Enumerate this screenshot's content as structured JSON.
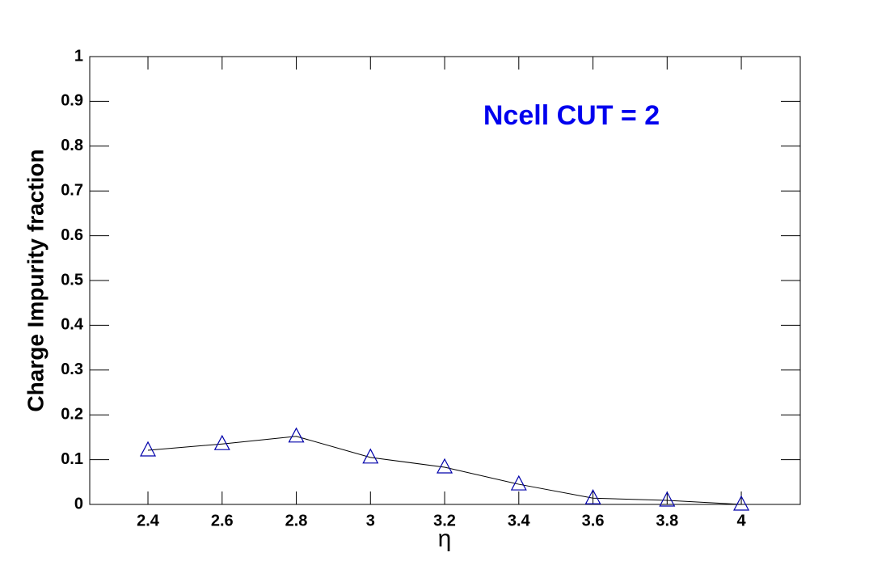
{
  "chart_data": {
    "type": "line",
    "x_label": "η",
    "y_label": "Charge Impurity fraction",
    "annotation": "Ncell CUT = 2",
    "annotation_color": "#0000ee",
    "x": [
      2.4,
      2.6,
      2.8,
      3,
      3.2,
      3.4,
      3.6,
      3.8,
      4
    ],
    "series": [
      {
        "name": "Ncell CUT = 2",
        "color": "#0000aa",
        "line_color": "#000000",
        "values": [
          0.121,
          0.135,
          0.152,
          0.105,
          0.083,
          0.045,
          0.014,
          0.009,
          0.0
        ]
      }
    ],
    "xlim": [
      2.243,
      4.159
    ],
    "ylim": [
      0,
      1
    ],
    "xticks": [
      2.4,
      2.6,
      2.8,
      3,
      3.2,
      3.4,
      3.6,
      3.8,
      4
    ],
    "yticks": [
      0,
      0.1,
      0.2,
      0.3,
      0.4,
      0.5,
      0.6,
      0.7,
      0.8,
      0.9,
      1
    ]
  }
}
